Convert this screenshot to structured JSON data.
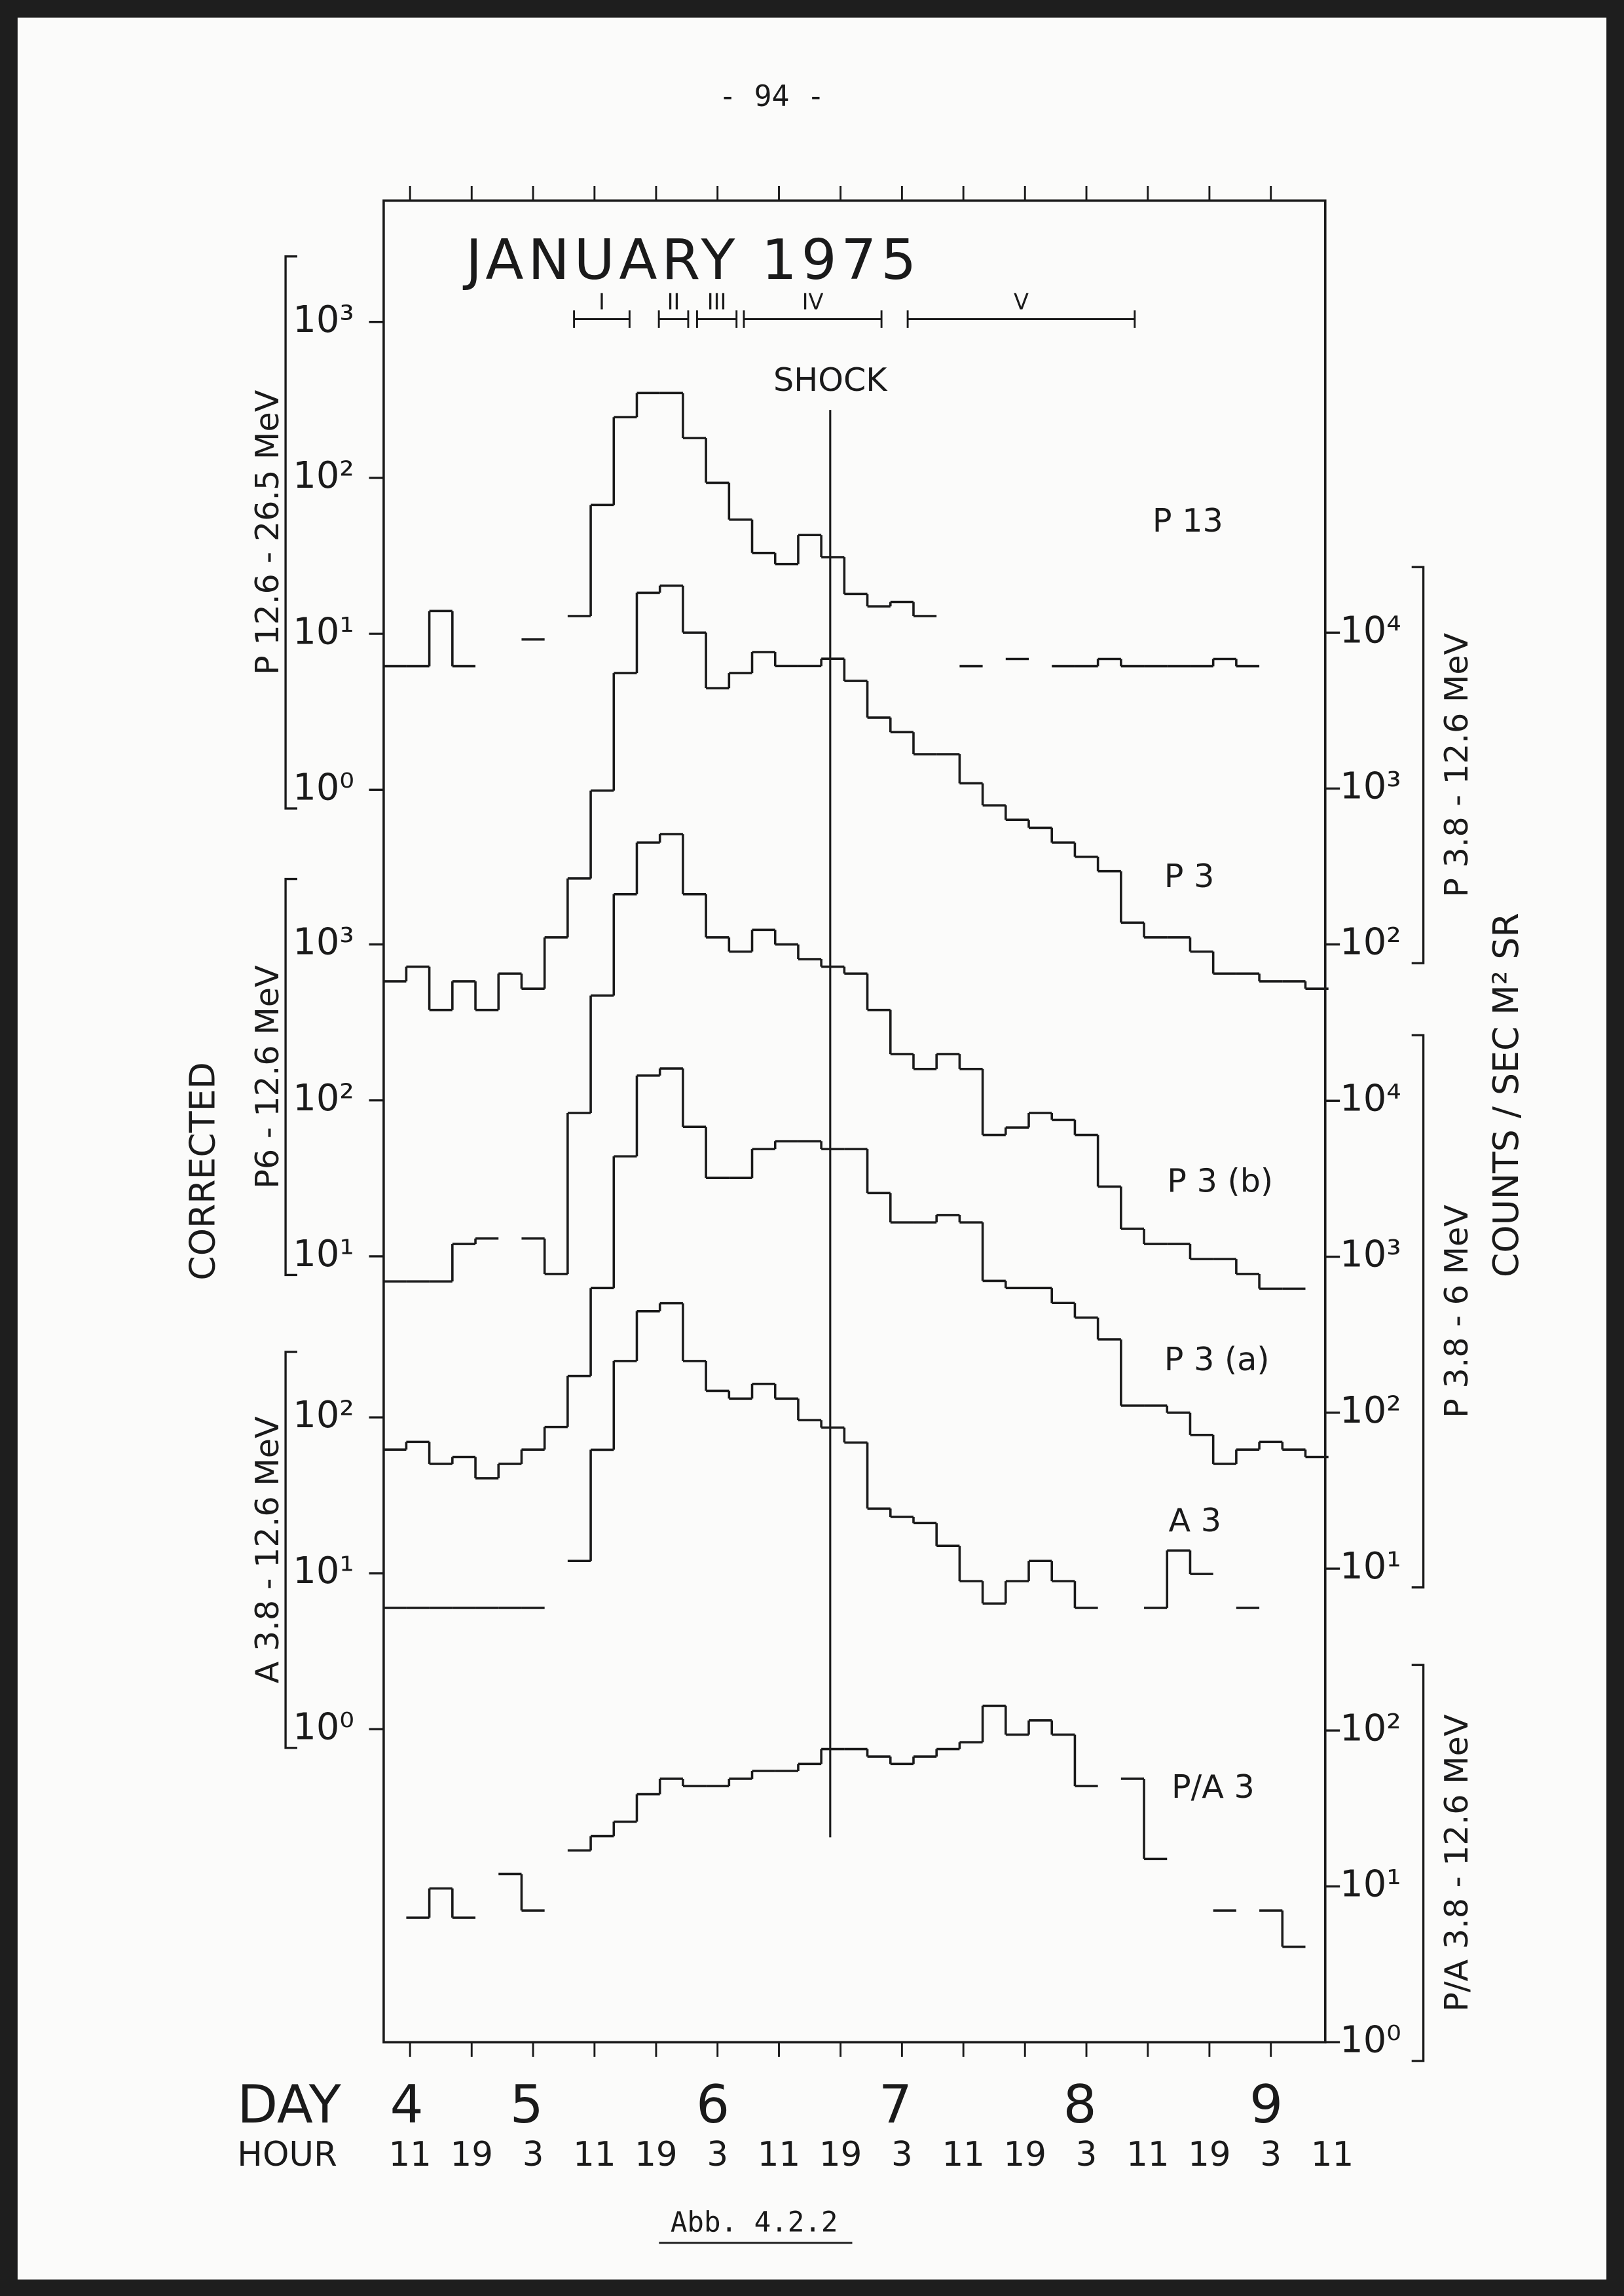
{
  "page_number": "- 94 -",
  "caption": "Abb. 4.2.2",
  "chart_data": {
    "type": "line",
    "step": true,
    "log": true,
    "title": "JANUARY 1975",
    "x_label": "DAY",
    "x_sublabel": "HOUR",
    "side_label": "CORRECTED",
    "side_label_right": "COUNTS / SEC M² SR",
    "xlim": [
      4.315,
      9.42
    ],
    "day_ticks": [
      {
        "value": 4.44,
        "label": "4"
      },
      {
        "value": 5.09,
        "label": "5"
      },
      {
        "value": 6.1,
        "label": "6"
      },
      {
        "value": 7.09,
        "label": "7"
      },
      {
        "value": 8.09,
        "label": "8"
      },
      {
        "value": 9.1,
        "label": "9"
      }
    ],
    "xticks": [
      {
        "value": 4.458,
        "label": "11"
      },
      {
        "value": 4.792,
        "label": "19"
      },
      {
        "value": 5.125,
        "label": "3"
      },
      {
        "value": 5.458,
        "label": "11"
      },
      {
        "value": 5.792,
        "label": "19"
      },
      {
        "value": 6.125,
        "label": "3"
      },
      {
        "value": 6.458,
        "label": "11"
      },
      {
        "value": 6.792,
        "label": "19"
      },
      {
        "value": 7.125,
        "label": "3"
      },
      {
        "value": 7.458,
        "label": "11"
      },
      {
        "value": 7.792,
        "label": "19"
      },
      {
        "value": 8.125,
        "label": "3"
      },
      {
        "value": 8.458,
        "label": "11"
      },
      {
        "value": 8.792,
        "label": "19"
      },
      {
        "value": 9.125,
        "label": "3"
      },
      {
        "value": 9.458,
        "label": "11"
      }
    ],
    "axes": [
      {
        "side": "left",
        "label": "P 12.6 - 26.5 MeV",
        "ylim": [
          9.3e-09,
          6000
        ],
        "yticks": [
          {
            "value": 1,
            "label": "10⁰"
          },
          {
            "value": 10,
            "label": "10¹"
          },
          {
            "value": 100,
            "label": "10²"
          },
          {
            "value": 1000,
            "label": "10³"
          }
        ]
      },
      {
        "side": "left",
        "label": "P6 - 12.6 MeV",
        "ylim": [
          9.1e-05,
          59000000.0
        ],
        "yticks": [
          {
            "value": 10,
            "label": "10¹"
          },
          {
            "value": 100,
            "label": "10²"
          },
          {
            "value": 1000,
            "label": "10³"
          }
        ]
      },
      {
        "side": "left",
        "label": "A 3.8 - 12.6 MeV",
        "ylim": [
          0.0098,
          6400000000.0
        ],
        "yticks": [
          {
            "value": 1,
            "label": "10⁰"
          },
          {
            "value": 10,
            "label": "10¹"
          },
          {
            "value": 100,
            "label": "10²"
          }
        ]
      },
      {
        "side": "right",
        "label": "P 3.8 - 12.6 MeV",
        "ylim": [
          9.1e-06,
          5900000.0
        ],
        "yticks": [
          {
            "value": 100,
            "label": "10²"
          },
          {
            "value": 1000,
            "label": "10³"
          },
          {
            "value": 10000,
            "label": "10⁴"
          }
        ]
      },
      {
        "side": "right",
        "label": "P 3.8 - 6 MeV",
        "ylim": [
          0.0092,
          5900000000.0
        ],
        "yticks": [
          {
            "value": 10,
            "label": "10¹"
          },
          {
            "value": 100,
            "label": "10²"
          },
          {
            "value": 1000,
            "label": "10³"
          },
          {
            "value": 10000,
            "label": "10⁴"
          }
        ]
      },
      {
        "side": "right",
        "label": "P/A 3.8 - 12.6 MeV",
        "ylim": [
          1,
          650000000000.0
        ],
        "yticks": [
          {
            "value": 1,
            "label": "10⁰"
          },
          {
            "value": 10,
            "label": "10¹"
          },
          {
            "value": 100,
            "label": "10²"
          }
        ]
      }
    ],
    "x": [
      4.375,
      4.5,
      4.625,
      4.75,
      4.875,
      5,
      5.125,
      5.25,
      5.375,
      5.5,
      5.625,
      5.75,
      5.875,
      6,
      6.125,
      6.25,
      6.375,
      6.5,
      6.625,
      6.75,
      6.875,
      7,
      7.125,
      7.25,
      7.375,
      7.5,
      7.625,
      7.75,
      7.875,
      8,
      8.125,
      8.25,
      8.375,
      8.5,
      8.625,
      8.75,
      8.875,
      9,
      9.125,
      9.25,
      9.375
    ],
    "series": [
      {
        "name": "P 13",
        "axis": 0,
        "color": "#1a1a1a",
        "values": [
          6.2,
          6.2,
          14,
          6.2,
          null,
          null,
          9.2,
          null,
          13,
          67,
          245,
          350,
          350,
          180,
          93,
          54,
          33,
          28,
          43,
          31,
          18,
          15,
          16,
          13,
          null,
          6.2,
          null,
          6.9,
          null,
          6.2,
          6.2,
          6.9,
          6.2,
          6.2,
          6.2,
          6.2,
          6.9,
          6.2,
          null,
          null,
          null
        ]
      },
      {
        "name": "P 3",
        "axis": 3,
        "color": "#1a1a1a",
        "values": [
          58,
          72,
          38,
          58,
          38,
          65,
          52,
          111,
          265,
          970,
          5500,
          18000,
          20000,
          10000,
          4400,
          5500,
          7500,
          6100,
          6100,
          6800,
          4900,
          2850,
          2300,
          1660,
          1660,
          1080,
          780,
          630,
          560,
          450,
          365,
          295,
          138,
          111,
          111,
          90,
          65,
          65,
          58,
          58,
          52
        ]
      },
      {
        "name": "P 3 (b)",
        "axis": 1,
        "color": "#1a1a1a",
        "values": [
          6.9,
          6.9,
          6.9,
          12,
          13,
          null,
          13,
          7.7,
          83,
          470,
          2100,
          4500,
          5100,
          2100,
          1110,
          900,
          1240,
          1000,
          805,
          720,
          650,
          380,
          198,
          159,
          198,
          159,
          60,
          67,
          83,
          75,
          60,
          28,
          15,
          12,
          12,
          9.6,
          9.6,
          7.7,
          6.2,
          6.2,
          null
        ]
      },
      {
        "name": "P 3 (a)",
        "axis": 4,
        "color": "#1a1a1a",
        "values": [
          58,
          65,
          47,
          52,
          38,
          47,
          58,
          81,
          172,
          630,
          4400,
          14500,
          16100,
          6800,
          3200,
          3200,
          4900,
          5500,
          5500,
          4900,
          4900,
          2560,
          1660,
          1660,
          1850,
          1660,
          700,
          630,
          630,
          505,
          407,
          295,
          111,
          111,
          100,
          72,
          47,
          58,
          65,
          58,
          52
        ]
      },
      {
        "name": "A 3",
        "axis": 2,
        "color": "#1a1a1a",
        "values": [
          6.0,
          6.0,
          6.0,
          6.0,
          6.0,
          6.0,
          6.0,
          null,
          12,
          62,
          230,
          480,
          540,
          230,
          148,
          132,
          164,
          132,
          96,
          86,
          69,
          26,
          23,
          21,
          15,
          8.9,
          6.4,
          8.9,
          12,
          8.9,
          6.0,
          null,
          null,
          6.0,
          14,
          9.9,
          null,
          6.0,
          null,
          null,
          null
        ]
      },
      {
        "name": "P/A 3",
        "axis": 5,
        "color": "#1a1a1a",
        "values": [
          null,
          6.3,
          9.7,
          6.3,
          null,
          12,
          7.0,
          null,
          17,
          21,
          26,
          39,
          49,
          44,
          44,
          49,
          55,
          55,
          61,
          76,
          76,
          68,
          61,
          68,
          76,
          84,
          144,
          94,
          116,
          94,
          44,
          null,
          49,
          15,
          null,
          null,
          7.0,
          null,
          7.0,
          4.1,
          null
        ]
      }
    ],
    "intervals": [
      {
        "label": "I",
        "start": 5.347,
        "end": 5.648
      },
      {
        "label": "II",
        "start": 5.807,
        "end": 5.966
      },
      {
        "label": "III",
        "start": 6.014,
        "end": 6.228
      },
      {
        "label": "IV",
        "start": 6.268,
        "end": 7.014
      },
      {
        "label": "V",
        "start": 7.156,
        "end": 8.387
      }
    ],
    "annotations": [
      {
        "text": "SHOCK",
        "x": 6.736
      }
    ]
  }
}
